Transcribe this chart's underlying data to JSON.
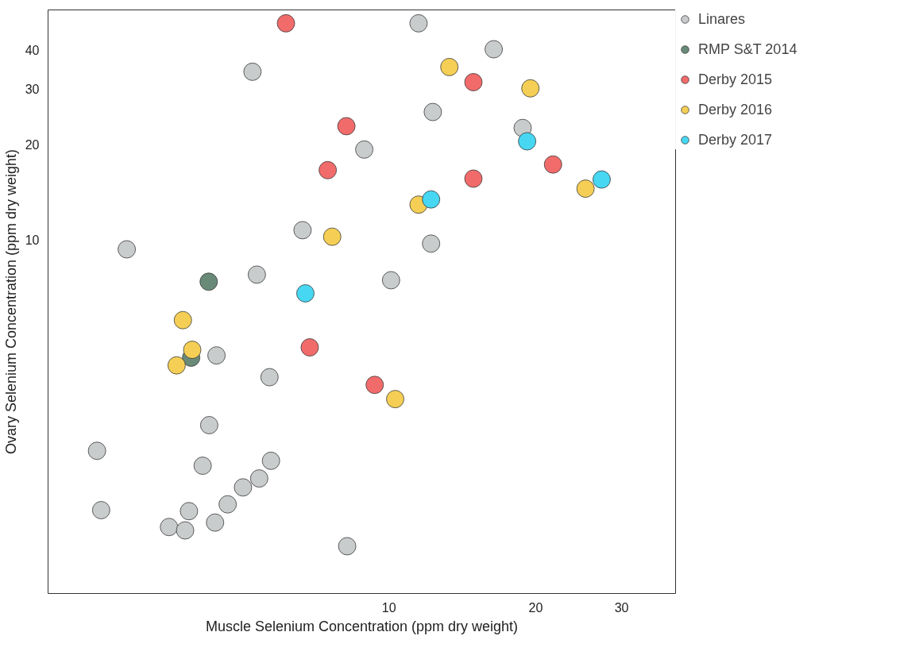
{
  "chart_data": {
    "type": "scatter",
    "xlabel": "Muscle Selenium Concentration (ppm dry weight)",
    "ylabel": "Ovary Selenium Concentration (ppm dry weight)",
    "log": "xy",
    "xlim": [
      2.0,
      38.7
    ],
    "ylim": [
      0.75,
      53.6
    ],
    "xticks": [
      10,
      20,
      30
    ],
    "yticks": [
      10,
      20,
      30,
      40
    ],
    "grid": false,
    "legend": "right",
    "marker": "circle",
    "series": [
      {
        "name": "Linares",
        "color": "#c9cccc",
        "x": [
          11.5,
          16.4,
          5.25,
          12.3,
          18.8,
          8.9,
          6.65,
          2.9,
          12.2,
          5.36,
          10.1,
          4.43,
          5.69,
          4.28,
          2.52,
          4.15,
          5.73,
          5.42,
          5.02,
          4.67,
          2.57,
          3.89,
          3.54,
          3.82,
          4.4,
          8.21
        ],
        "values": [
          48.6,
          40.2,
          34.1,
          25.4,
          22.6,
          19.3,
          10.7,
          9.3,
          9.7,
          7.73,
          7.42,
          4.28,
          3.65,
          2.57,
          2.13,
          1.91,
          1.98,
          1.74,
          1.63,
          1.44,
          1.38,
          1.37,
          1.22,
          1.19,
          1.26,
          1.06
        ]
      },
      {
        "name": "RMP S&T 2014",
        "color": "#6a8a78",
        "x": [
          4.27,
          3.93
        ],
        "values": [
          7.34,
          4.21
        ]
      },
      {
        "name": "Derby 2015",
        "color": "#f26b6b",
        "x": [
          6.15,
          14.9,
          8.18,
          7.49,
          14.9,
          21.7,
          6.88,
          9.35
        ],
        "values": [
          48.6,
          31.6,
          22.9,
          16.6,
          15.6,
          17.3,
          4.54,
          3.45
        ]
      },
      {
        "name": "Derby 2016",
        "color": "#f5cf55",
        "x": [
          13.3,
          19.5,
          25.3,
          11.5,
          7.65,
          3.78,
          3.95,
          3.67,
          10.3
        ],
        "values": [
          35.3,
          30.2,
          14.5,
          12.9,
          10.2,
          5.54,
          4.46,
          3.98,
          3.11
        ]
      },
      {
        "name": "Derby 2017",
        "color": "#47d7f2",
        "x": [
          19.2,
          27.3,
          12.2,
          6.74
        ],
        "values": [
          20.5,
          15.5,
          13.4,
          6.74
        ]
      }
    ]
  }
}
